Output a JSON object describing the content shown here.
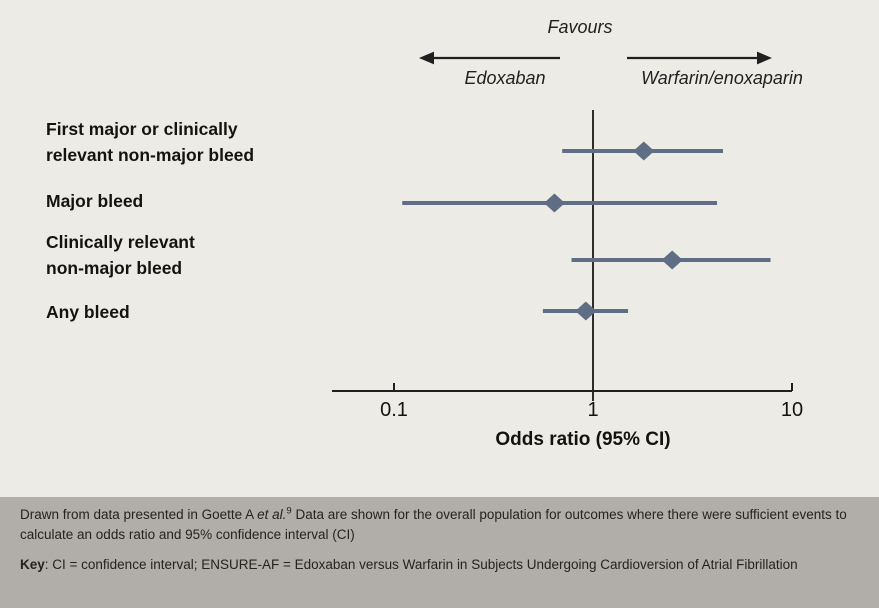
{
  "colors": {
    "background": "#edebe5",
    "footer_background": "#b1ada8",
    "marker": "#5f6e85",
    "axis": "#231f20"
  },
  "header": {
    "favours_label": "Favours",
    "left_label": "Edoxaban",
    "right_label": "Warfarin/enoxaparin"
  },
  "chart_data": {
    "type": "forest",
    "xlabel": "Odds ratio (95% CI)",
    "x_scale": "log",
    "xlim": [
      0.1,
      10
    ],
    "x_ticks": [
      0.1,
      1,
      10
    ],
    "x_tick_labels": [
      "0.1",
      "1",
      "10"
    ],
    "reference_line": 1,
    "rows": [
      {
        "label": "First major or clinically relevant non-major bleed",
        "label_lines": [
          "First major or clinically",
          "relevant non-major bleed"
        ],
        "or": 1.8,
        "ci_low": 0.7,
        "ci_high": 4.5
      },
      {
        "label": "Major bleed",
        "label_lines": [
          "Major bleed"
        ],
        "or": 0.64,
        "ci_low": 0.11,
        "ci_high": 4.2
      },
      {
        "label": "Clinically relevant non-major bleed",
        "label_lines": [
          "Clinically relevant",
          "non-major bleed"
        ],
        "or": 2.5,
        "ci_low": 0.78,
        "ci_high": 7.8
      },
      {
        "label": "Any bleed",
        "label_lines": [
          "Any bleed"
        ],
        "or": 0.92,
        "ci_low": 0.56,
        "ci_high": 1.5
      }
    ]
  },
  "footer": {
    "source_prefix": "Drawn from data presented in Goette A ",
    "source_etal": "et al.",
    "source_ref": "9",
    "source_suffix": " Data are shown for the overall population for outcomes where there were sufficient events to calculate an odds ratio and 95% confidence interval (CI)",
    "key_label": "Key",
    "key_text": ": CI = confidence interval; ENSURE-AF = Edoxaban versus Warfarin in Subjects Undergoing Cardioversion of Atrial Fibrillation"
  }
}
